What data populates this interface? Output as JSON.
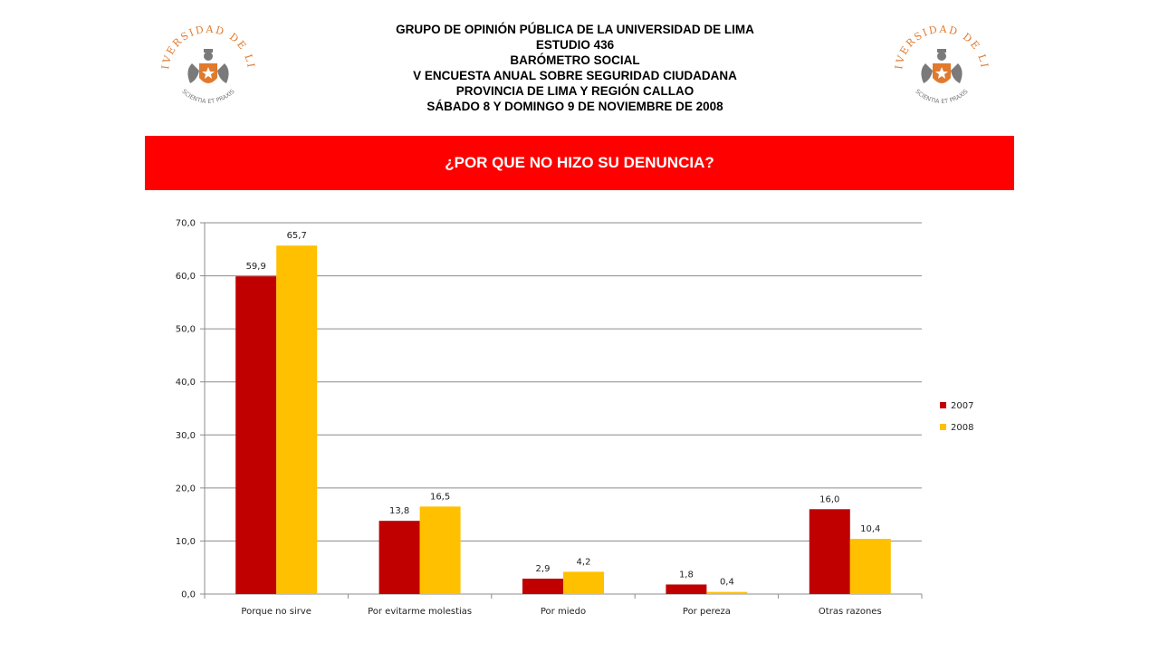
{
  "header": {
    "lines": [
      "GRUPO DE OPINIÓN PÚBLICA DE LA UNIVERSIDAD DE LIMA",
      "ESTUDIO 436",
      "BARÓMETRO SOCIAL",
      "V ENCUESTA ANUAL SOBRE SEGURIDAD CIUDADANA",
      "PROVINCIA DE LIMA Y REGIÓN CALLAO",
      "SÁBADO 8 Y DOMINGO 9 DE NOVIEMBRE DE 2008"
    ]
  },
  "logo": {
    "arc_text": "UNIVERSIDAD DE LIMA",
    "motto": "SCIENTIA ET PRAXIS",
    "colors": {
      "orange": "#e07a2e",
      "gray": "#7a7a7a"
    }
  },
  "banner": {
    "title": "¿POR QUE NO HIZO SU DENUNCIA?",
    "color": "#ff0000"
  },
  "chart_data": {
    "type": "bar",
    "categories": [
      "Porque no sirve",
      "Por evitarme molestias",
      "Por miedo",
      "Por pereza",
      "Otras razones"
    ],
    "series": [
      {
        "name": "2007",
        "values": [
          59.9,
          13.8,
          2.9,
          1.8,
          16.0
        ],
        "labels": [
          "59,9",
          "13,8",
          "2,9",
          "1,8",
          "16,0"
        ],
        "color": "#c00000"
      },
      {
        "name": "2008",
        "values": [
          65.7,
          16.5,
          4.2,
          0.4,
          10.4
        ],
        "labels": [
          "65,7",
          "16,5",
          "4,2",
          "0,4",
          "10,4"
        ],
        "color": "#ffc000"
      }
    ],
    "ylim": [
      0,
      70
    ],
    "ytick_labels": [
      "0,0",
      "10,0",
      "20,0",
      "30,0",
      "40,0",
      "50,0",
      "60,0",
      "70,0"
    ],
    "grid": true,
    "legend_position": "right"
  }
}
